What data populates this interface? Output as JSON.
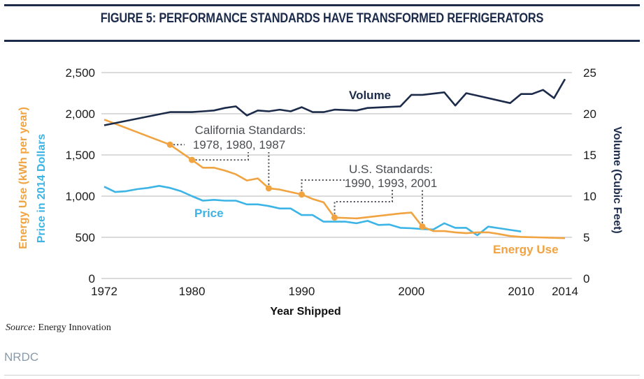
{
  "figure": {
    "title": "FIGURE 5: PERFORMANCE STANDARDS HAVE TRANSFORMED REFRIGERATORS",
    "source_label": "Source:",
    "source_text": "Energy Innovation",
    "credit": "NRDC"
  },
  "chart_data": {
    "type": "line",
    "title": "FIGURE 5: PERFORMANCE STANDARDS HAVE TRANSFORMED REFRIGERATORS",
    "xlabel": "Year Shipped",
    "ylabel_left_1": "Energy Use (kWh per year)",
    "ylabel_left_2": "Price in 2014 Dollars",
    "ylabel_right": "Volume (Cubic Feet)",
    "xlim": [
      1972,
      2014
    ],
    "ylim_left": [
      0,
      2500
    ],
    "ylim_right": [
      0,
      25
    ],
    "x_ticks": [
      1972,
      1980,
      1990,
      2000,
      2010,
      2014
    ],
    "x_tick_labels": [
      "1972",
      "1980",
      "1990",
      "2000",
      "2010",
      "2014"
    ],
    "y_left_ticks": [
      0,
      500,
      1000,
      1500,
      2000,
      2500
    ],
    "y_left_tick_labels": [
      "0",
      "500",
      "1,000",
      "1,500",
      "2,000",
      "2,500"
    ],
    "y_right_ticks": [
      0,
      5,
      10,
      15,
      20,
      25
    ],
    "y_right_tick_labels": [
      "0",
      "5",
      "10",
      "15",
      "20",
      "25"
    ],
    "grid": true,
    "legend": "inline-labels",
    "colors": {
      "energy": "#f0a340",
      "price": "#3cb4e5",
      "volume": "#1c2b4a",
      "annotation": "#4a4d52",
      "grid": "#cfcfcf"
    },
    "series": [
      {
        "name": "Energy Use",
        "axis": "left",
        "x": [
          1972,
          1978,
          1980,
          1981,
          1982,
          1983,
          1984,
          1985,
          1986,
          1987,
          1988,
          1989,
          1990,
          1991,
          1992,
          1993,
          1995,
          1999,
          2000,
          2001,
          2002,
          2003,
          2004,
          2005,
          2006,
          2007,
          2008,
          2009,
          2010,
          2014
        ],
        "values": [
          1930,
          1625,
          1440,
          1345,
          1345,
          1310,
          1265,
          1190,
          1215,
          1095,
          1080,
          1050,
          1020,
          965,
          925,
          740,
          730,
          790,
          800,
          630,
          575,
          575,
          560,
          550,
          560,
          560,
          540,
          515,
          505,
          490
        ],
        "markers_at": [
          1978,
          1980,
          1987,
          1990,
          1993,
          2001
        ]
      },
      {
        "name": "Price",
        "axis": "left",
        "x": [
          1972,
          1973,
          1974,
          1975,
          1976,
          1977,
          1978,
          1979,
          1980,
          1981,
          1982,
          1983,
          1984,
          1985,
          1986,
          1987,
          1988,
          1989,
          1990,
          1991,
          1992,
          1993,
          1994,
          1995,
          1996,
          1997,
          1998,
          1999,
          2000,
          2001,
          2002,
          2003,
          2004,
          2005,
          2006,
          2007,
          2008,
          2009,
          2010
        ],
        "values": [
          1115,
          1050,
          1060,
          1085,
          1100,
          1125,
          1100,
          1060,
          1000,
          945,
          955,
          945,
          945,
          900,
          900,
          880,
          850,
          850,
          770,
          770,
          690,
          690,
          690,
          670,
          700,
          650,
          655,
          615,
          610,
          600,
          595,
          670,
          615,
          615,
          525,
          630,
          610,
          590,
          570
        ]
      },
      {
        "name": "Volume",
        "axis": "right",
        "x": [
          1972,
          1978,
          1980,
          1981,
          1982,
          1983,
          1984,
          1985,
          1986,
          1987,
          1988,
          1989,
          1990,
          1991,
          1992,
          1993,
          1995,
          1996,
          1999,
          2000,
          2001,
          2003,
          2004,
          2005,
          2006,
          2009,
          2010,
          2011,
          2012,
          2013,
          2014
        ],
        "values": [
          18.6,
          20.2,
          20.2,
          20.3,
          20.4,
          20.7,
          20.9,
          19.8,
          20.4,
          20.3,
          20.5,
          20.3,
          20.8,
          20.2,
          20.2,
          20.5,
          20.4,
          20.7,
          20.9,
          22.3,
          22.3,
          22.6,
          21.0,
          22.5,
          22.2,
          21.3,
          22.4,
          22.4,
          22.9,
          21.9,
          24.2
        ]
      }
    ],
    "series_labels": {
      "volume": "Volume",
      "price": "Price",
      "energy": "Energy Use"
    },
    "annotations": [
      {
        "name": "california-standards",
        "line1": "California Standards:",
        "line2": "1978, 1980, 1987",
        "years": [
          1978,
          1980,
          1987
        ]
      },
      {
        "name": "us-standards",
        "line1": "U.S. Standards:",
        "line2": "1990, 1993, 2001",
        "years": [
          1990,
          1993,
          2001
        ]
      }
    ]
  }
}
